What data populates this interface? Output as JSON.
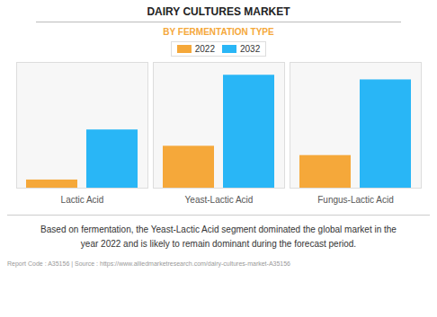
{
  "chart_data": {
    "type": "bar",
    "title": "DAIRY CULTURES MARKET",
    "subtitle": "BY FERMENTATION TYPE",
    "categories": [
      "Lactic Acid",
      "Yeast-Lactic Acid",
      "Fungus-Lactic Acid"
    ],
    "series": [
      {
        "name": "2022",
        "color": "#F5A83A",
        "values": [
          0.07,
          0.36,
          0.28
        ]
      },
      {
        "name": "2032",
        "color": "#29B6F6",
        "values": [
          0.5,
          0.97,
          0.93
        ]
      }
    ],
    "ylim": [
      0,
      1.08
    ],
    "yticks": [],
    "grid": false,
    "tick_labels": "x",
    "legend": "top",
    "annotations": [
      "Based on fermentation, the Yeast-Lactic Acid segment dominated the global market in the\nyear 2022 and is likely to remain dominant during the forecast period.",
      "Report Code : A35156  |  Source : https://www.alliedmarketresearch.com/dairy-cultures-market-A35156"
    ]
  }
}
